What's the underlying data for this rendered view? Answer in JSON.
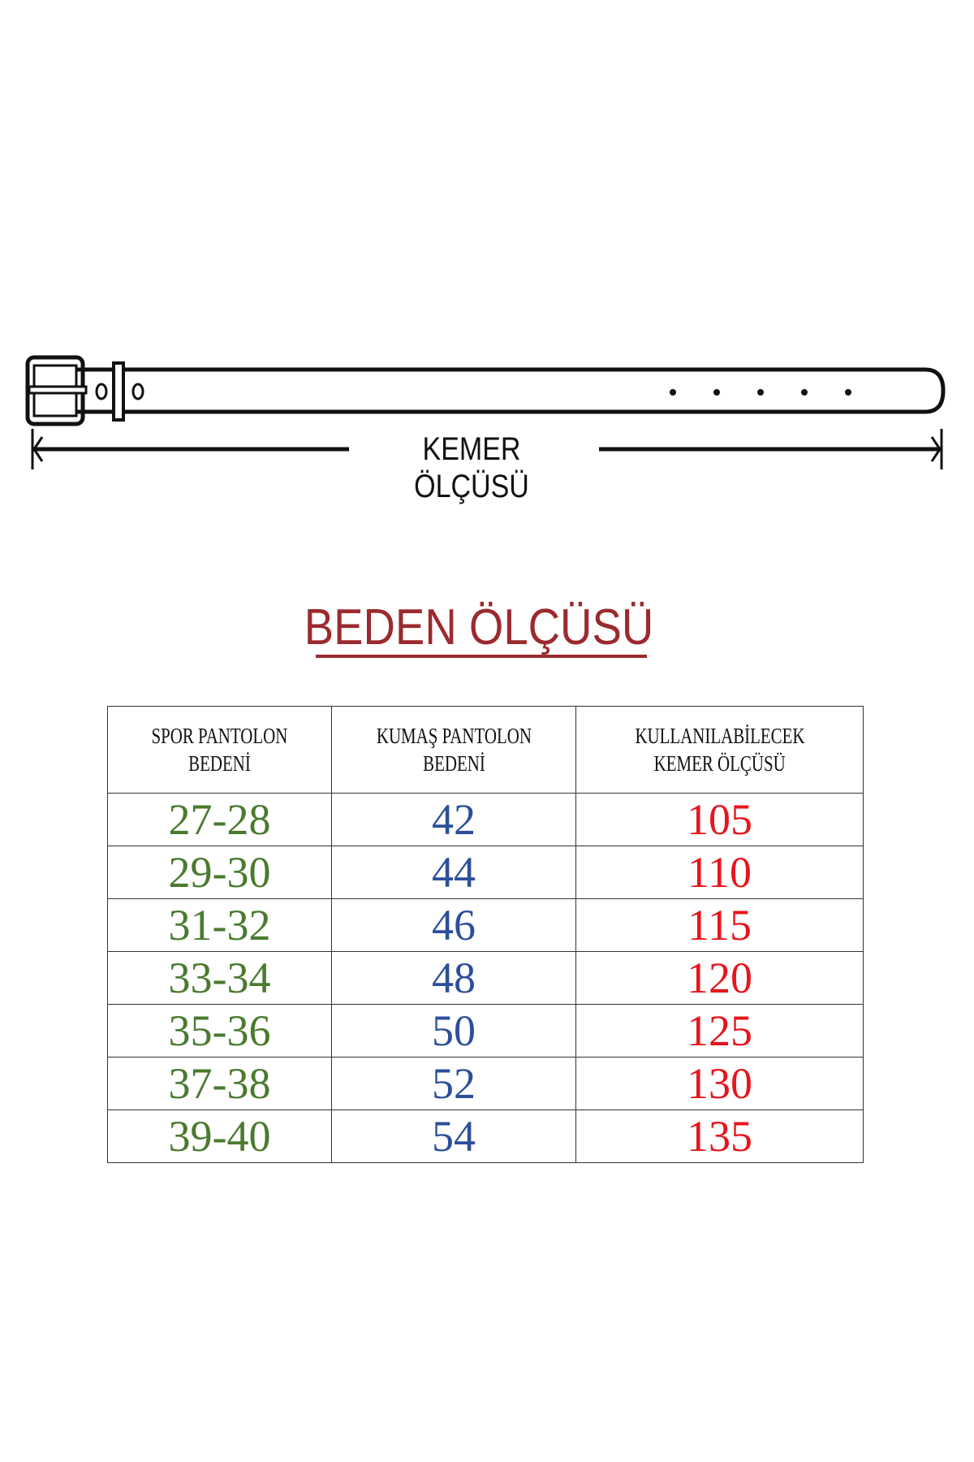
{
  "belt_diagram": {
    "label": "KEMER ÖLÇÜSÜ",
    "holes": 5
  },
  "title": "BEDEN ÖLÇÜSÜ",
  "colors": {
    "title": "#9b2a2f",
    "col1": "#4a7a2e",
    "col2": "#2d4f9a",
    "col3": "#e8141c"
  },
  "table": {
    "headers": [
      {
        "line1": "SPOR PANTOLON",
        "line2": "BEDENİ"
      },
      {
        "line1": "KUMAŞ PANTOLON",
        "line2": "BEDENİ"
      },
      {
        "line1": "KULLANILABİLECEK",
        "line2": "KEMER ÖLÇÜSÜ"
      }
    ],
    "rows": [
      [
        "27-28",
        "42",
        "105"
      ],
      [
        "29-30",
        "44",
        "110"
      ],
      [
        "31-32",
        "46",
        "115"
      ],
      [
        "33-34",
        "48",
        "120"
      ],
      [
        "35-36",
        "50",
        "125"
      ],
      [
        "37-38",
        "52",
        "130"
      ],
      [
        "39-40",
        "54",
        "135"
      ]
    ]
  }
}
